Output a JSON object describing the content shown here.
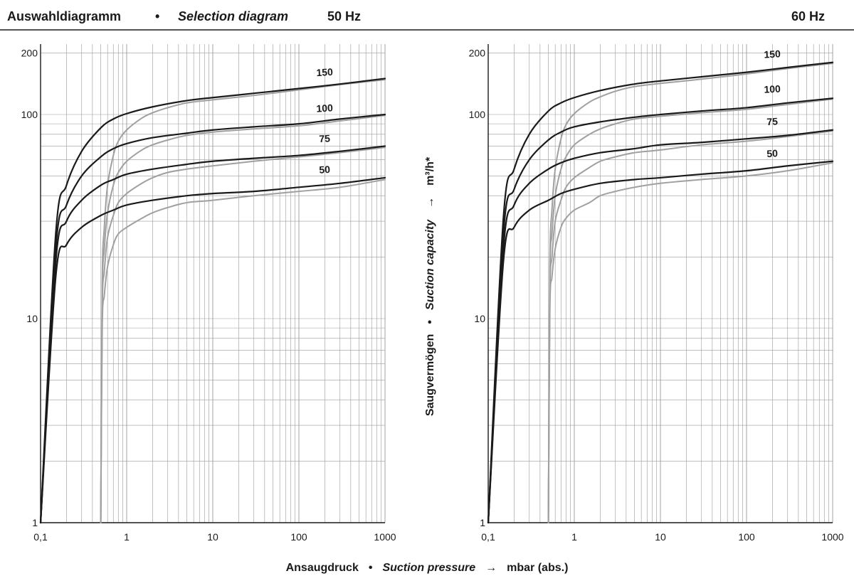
{
  "header": {
    "title_de": "Auswahldiagramm",
    "bullet": "•",
    "title_en": "Selection diagram",
    "freq_left": "50 Hz",
    "freq_right": "60 Hz"
  },
  "y_axis_title": {
    "de": "Saugvermögen",
    "bullet": "•",
    "en": "Suction capacity",
    "arrow": "→",
    "unit": "m³/h*"
  },
  "x_axis_title": {
    "de": "Ansaugdruck",
    "bullet": "•",
    "en": "Suction pressure",
    "arrow": "→",
    "unit": "mbar (abs.)"
  },
  "colors": {
    "black_curve": "#1a1a1a",
    "grey_curve": "#a0a0a0",
    "grid": "#9a9a9a",
    "axis": "#1a1a1a"
  },
  "chart_data": [
    {
      "type": "line",
      "panel": "50 Hz",
      "x_scale": "log",
      "y_scale": "log",
      "xlim": [
        0.1,
        1000
      ],
      "ylim": [
        1,
        200
      ],
      "x_ticks": [
        "0,1",
        "1",
        "10",
        "100",
        "1000"
      ],
      "y_ticks": [
        "1",
        "10",
        "100",
        "200"
      ],
      "grid": true,
      "series": [
        {
          "name": "150",
          "color": "black",
          "x": [
            0.1,
            0.15,
            0.2,
            0.3,
            0.5,
            0.7,
            1,
            2,
            5,
            10,
            30,
            100,
            300,
            1000
          ],
          "y": [
            1,
            26,
            45,
            66,
            86,
            95,
            101,
            109,
            117,
            121,
            127,
            134,
            141,
            150
          ]
        },
        {
          "name": "100",
          "color": "black",
          "x": [
            0.1,
            0.15,
            0.2,
            0.3,
            0.5,
            0.7,
            1,
            2,
            5,
            10,
            30,
            100,
            300,
            1000
          ],
          "y": [
            1,
            22,
            36,
            50,
            62,
            68,
            72,
            77,
            81,
            84,
            87,
            90,
            95,
            100
          ]
        },
        {
          "name": "75",
          "color": "black",
          "x": [
            0.1,
            0.15,
            0.2,
            0.3,
            0.5,
            0.7,
            1,
            2,
            5,
            10,
            30,
            100,
            300,
            1000
          ],
          "y": [
            1,
            19,
            30,
            38,
            45,
            48,
            51,
            54,
            57,
            59,
            61,
            63,
            66,
            70
          ]
        },
        {
          "name": "50",
          "color": "black",
          "x": [
            0.1,
            0.15,
            0.2,
            0.3,
            0.5,
            0.7,
            1,
            2,
            5,
            10,
            30,
            100,
            300,
            1000
          ],
          "y": [
            1,
            16,
            23,
            28,
            32,
            34,
            36,
            38,
            40,
            41,
            42,
            44,
            46,
            49
          ]
        },
        {
          "name": "150",
          "color": "grey",
          "x": [
            0.5,
            0.52,
            0.55,
            0.6,
            0.7,
            0.8,
            1,
            1.5,
            2,
            3,
            5,
            10,
            30,
            100,
            300,
            1000
          ],
          "y": [
            1,
            15,
            28,
            45,
            63,
            74,
            84,
            96,
            102,
            108,
            114,
            118,
            124,
            132,
            140,
            148
          ]
        },
        {
          "name": "100",
          "color": "grey",
          "x": [
            0.5,
            0.52,
            0.55,
            0.6,
            0.7,
            0.8,
            1,
            1.5,
            2,
            3,
            5,
            10,
            30,
            100,
            300,
            1000
          ],
          "y": [
            1,
            13,
            22,
            33,
            45,
            52,
            59,
            67,
            71,
            75,
            79,
            82,
            85,
            88,
            93,
            99
          ]
        },
        {
          "name": "75",
          "color": "grey",
          "x": [
            0.5,
            0.52,
            0.55,
            0.6,
            0.7,
            0.8,
            1,
            1.5,
            2,
            3,
            5,
            10,
            30,
            100,
            300,
            1000
          ],
          "y": [
            1,
            11,
            17,
            25,
            32,
            37,
            41,
            46,
            49,
            52,
            54,
            56,
            59,
            62,
            65,
            69
          ]
        },
        {
          "name": "50",
          "color": "grey",
          "x": [
            0.5,
            0.52,
            0.55,
            0.6,
            0.7,
            0.8,
            1,
            1.5,
            2,
            3,
            5,
            10,
            30,
            100,
            300,
            1000
          ],
          "y": [
            1,
            9,
            13,
            18,
            23,
            26,
            28,
            31,
            33,
            35,
            37,
            38,
            40,
            42,
            44,
            48
          ]
        }
      ],
      "curve_labels": [
        {
          "text": "150",
          "x": 200,
          "y": 150
        },
        {
          "text": "100",
          "x": 200,
          "y": 100
        },
        {
          "text": "75",
          "x": 200,
          "y": 71
        },
        {
          "text": "50",
          "x": 200,
          "y": 50
        }
      ]
    },
    {
      "type": "line",
      "panel": "60 Hz",
      "x_scale": "log",
      "y_scale": "log",
      "xlim": [
        0.1,
        1000
      ],
      "ylim": [
        1,
        200
      ],
      "x_ticks": [
        "0,1",
        "1",
        "10",
        "100",
        "1000"
      ],
      "y_ticks": [
        "1",
        "10",
        "100",
        "200"
      ],
      "grid": true,
      "series": [
        {
          "name": "150",
          "color": "black",
          "x": [
            0.1,
            0.15,
            0.2,
            0.3,
            0.5,
            0.7,
            1,
            2,
            5,
            10,
            30,
            100,
            300,
            1000
          ],
          "y": [
            1,
            31,
            54,
            80,
            104,
            114,
            121,
            131,
            141,
            146,
            153,
            161,
            170,
            180
          ]
        },
        {
          "name": "100",
          "color": "black",
          "x": [
            0.1,
            0.15,
            0.2,
            0.3,
            0.5,
            0.7,
            1,
            2,
            5,
            10,
            30,
            100,
            300,
            1000
          ],
          "y": [
            1,
            26,
            43,
            60,
            75,
            82,
            87,
            92,
            97,
            100,
            104,
            108,
            114,
            120
          ]
        },
        {
          "name": "75",
          "color": "black",
          "x": [
            0.1,
            0.15,
            0.2,
            0.3,
            0.5,
            0.7,
            1,
            2,
            5,
            10,
            30,
            100,
            300,
            1000
          ],
          "y": [
            1,
            22,
            36,
            46,
            54,
            58,
            61,
            65,
            68,
            71,
            73,
            76,
            79,
            84
          ]
        },
        {
          "name": "50",
          "color": "black",
          "x": [
            0.1,
            0.15,
            0.2,
            0.3,
            0.5,
            0.7,
            1,
            2,
            5,
            10,
            30,
            100,
            300,
            1000
          ],
          "y": [
            1,
            19,
            28,
            34,
            38,
            41,
            43,
            46,
            48,
            49,
            51,
            53,
            56,
            59
          ]
        },
        {
          "name": "150",
          "color": "grey",
          "x": [
            0.5,
            0.52,
            0.55,
            0.6,
            0.7,
            0.8,
            1,
            1.5,
            2,
            3,
            5,
            10,
            30,
            100,
            300,
            1000
          ],
          "y": [
            1,
            18,
            34,
            54,
            76,
            89,
            101,
            115,
            122,
            130,
            137,
            142,
            149,
            158,
            168,
            178
          ]
        },
        {
          "name": "100",
          "color": "grey",
          "x": [
            0.5,
            0.52,
            0.55,
            0.6,
            0.7,
            0.8,
            1,
            1.5,
            2,
            3,
            5,
            10,
            30,
            100,
            300,
            1000
          ],
          "y": [
            1,
            16,
            26,
            40,
            54,
            62,
            71,
            80,
            85,
            90,
            95,
            98,
            102,
            106,
            112,
            119
          ]
        },
        {
          "name": "75",
          "color": "grey",
          "x": [
            0.5,
            0.52,
            0.55,
            0.6,
            0.7,
            0.8,
            1,
            1.5,
            2,
            3,
            5,
            10,
            30,
            100,
            300,
            1000
          ],
          "y": [
            1,
            13,
            20,
            30,
            38,
            44,
            49,
            55,
            59,
            62,
            65,
            67,
            71,
            74,
            78,
            83
          ]
        },
        {
          "name": "50",
          "color": "grey",
          "x": [
            0.5,
            0.52,
            0.55,
            0.6,
            0.7,
            0.8,
            1,
            1.5,
            2,
            3,
            5,
            10,
            30,
            100,
            300,
            1000
          ],
          "y": [
            1,
            11,
            16,
            22,
            28,
            31,
            34,
            37,
            40,
            42,
            44,
            46,
            48,
            50,
            53,
            58
          ]
        }
      ],
      "curve_labels": [
        {
          "text": "150",
          "x": 200,
          "y": 184
        },
        {
          "text": "100",
          "x": 200,
          "y": 124
        },
        {
          "text": "75",
          "x": 200,
          "y": 86
        },
        {
          "text": "50",
          "x": 200,
          "y": 60
        }
      ]
    }
  ]
}
